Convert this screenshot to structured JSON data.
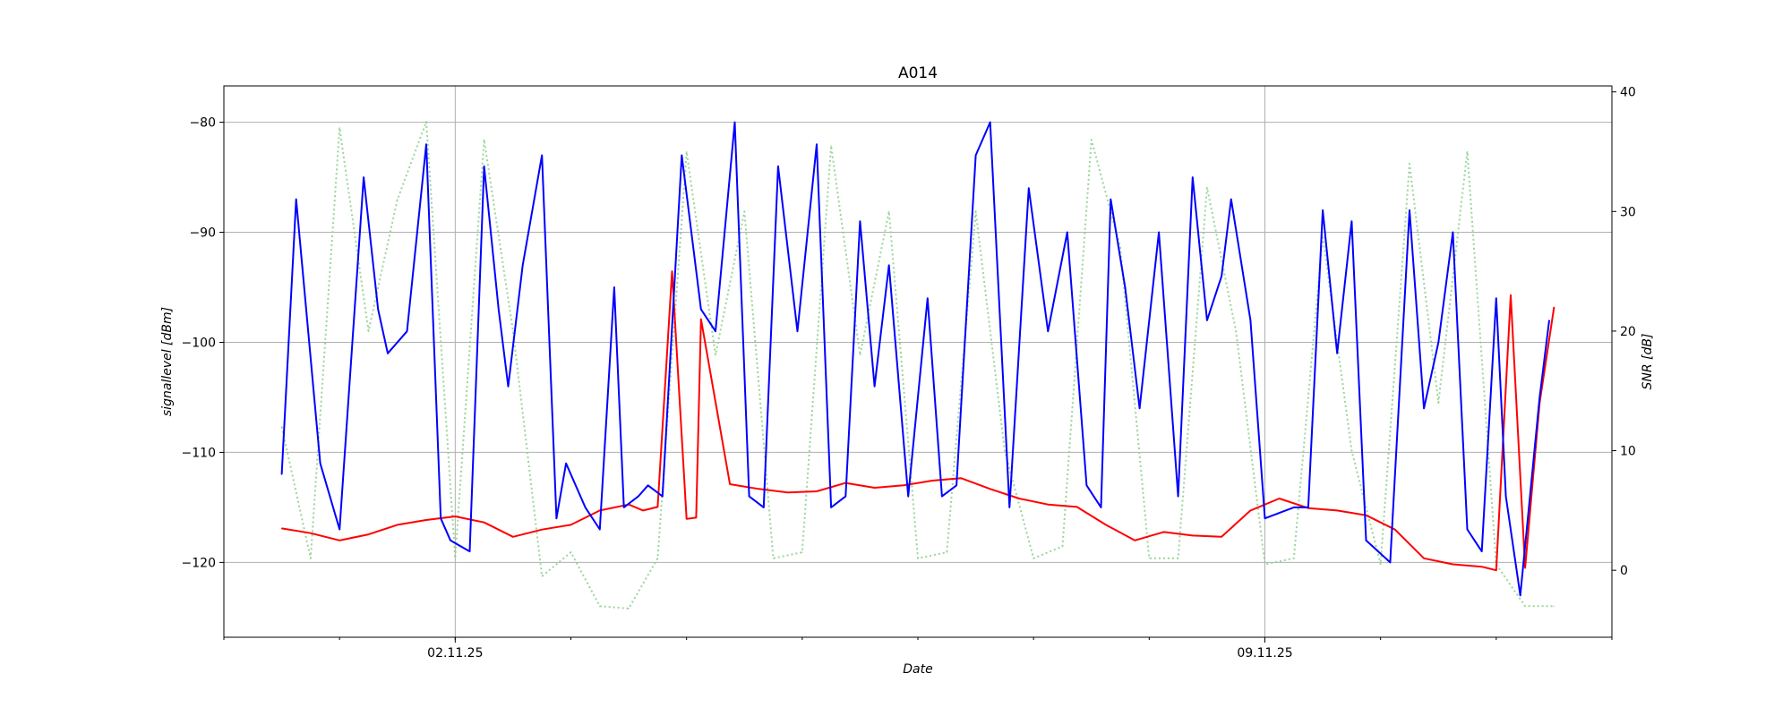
{
  "chart_data": {
    "type": "line",
    "title": "A014",
    "xlabel": "Date",
    "ylabel": "signallevel [dBm]",
    "y2label": "SNR [dB]",
    "x_range": [
      "2025-10-31T00:00",
      "2025-11-12T00:00"
    ],
    "ylim": [
      -126.8,
      -76.7
    ],
    "y2lim": [
      -5.6,
      40.5
    ],
    "grid": true,
    "x_ticks": [
      {
        "date": "2025-11-02",
        "label": "02.11.25"
      },
      {
        "date": "2025-11-09",
        "label": "09.11.25"
      }
    ],
    "y_ticks": [
      -80,
      -90,
      -100,
      -110,
      -120
    ],
    "y2_ticks": [
      40,
      30,
      20,
      10,
      0
    ],
    "colors": {
      "signal": "#0000ff",
      "snr": "#ff0000",
      "dotted": "#90d090"
    },
    "series": [
      {
        "key": "signal",
        "axis": "left",
        "style": "solid",
        "x": [
          "2025-10-31T12:00",
          "2025-10-31T15:00",
          "2025-10-31T20:00",
          "2025-11-01T00:00",
          "2025-11-01T05:00",
          "2025-11-01T08:00",
          "2025-11-01T10:00",
          "2025-11-01T14:00",
          "2025-11-01T18:00",
          "2025-11-01T21:00",
          "2025-11-01T23:00",
          "2025-11-02T03:00",
          "2025-11-02T06:00",
          "2025-11-02T09:00",
          "2025-11-02T11:00",
          "2025-11-02T14:00",
          "2025-11-02T18:00",
          "2025-11-02T21:00",
          "2025-11-02T23:00",
          "2025-11-03T03:00",
          "2025-11-03T06:00",
          "2025-11-03T09:00",
          "2025-11-03T11:00",
          "2025-11-03T14:00",
          "2025-11-03T16:00",
          "2025-11-03T19:00",
          "2025-11-03T23:00",
          "2025-11-04T03:00",
          "2025-11-04T06:00",
          "2025-11-04T10:00",
          "2025-11-04T13:00",
          "2025-11-04T16:00",
          "2025-11-04T19:00",
          "2025-11-04T23:00",
          "2025-11-05T03:00",
          "2025-11-05T06:00",
          "2025-11-05T09:00",
          "2025-11-05T12:00",
          "2025-11-05T15:00",
          "2025-11-05T18:00",
          "2025-11-05T22:00",
          "2025-11-06T02:00",
          "2025-11-06T05:00",
          "2025-11-06T08:00",
          "2025-11-06T12:00",
          "2025-11-06T15:00",
          "2025-11-06T19:00",
          "2025-11-06T23:00",
          "2025-11-07T03:00",
          "2025-11-07T07:00",
          "2025-11-07T11:00",
          "2025-11-07T14:00",
          "2025-11-07T16:00",
          "2025-11-07T19:00",
          "2025-11-07T22:00",
          "2025-11-08T02:00",
          "2025-11-08T06:00",
          "2025-11-08T09:00",
          "2025-11-08T12:00",
          "2025-11-08T15:00",
          "2025-11-08T17:00",
          "2025-11-08T21:00",
          "2025-11-09T00:00",
          "2025-11-09T06:00",
          "2025-11-09T09:00",
          "2025-11-09T12:00",
          "2025-11-09T15:00",
          "2025-11-09T18:00",
          "2025-11-09T21:00",
          "2025-11-10T02:00",
          "2025-11-10T06:00",
          "2025-11-10T09:00",
          "2025-11-10T12:00",
          "2025-11-10T15:00",
          "2025-11-10T18:00",
          "2025-11-10T21:00",
          "2025-11-11T00:00",
          "2025-11-11T02:00",
          "2025-11-11T05:00",
          "2025-11-11T09:00",
          "2025-11-11T11:00"
        ],
        "y": [
          -112,
          -87,
          -111,
          -117,
          -85,
          -97,
          -101,
          -99,
          -82,
          -116,
          -118,
          -119,
          -84,
          -97,
          -104,
          -93,
          -83,
          -116,
          -111,
          -115,
          -117,
          -95,
          -115,
          -114,
          -113,
          -114,
          -83,
          -97,
          -99,
          -80,
          -114,
          -115,
          -84,
          -99,
          -82,
          -115,
          -114,
          -89,
          -104,
          -93,
          -114,
          -96,
          -114,
          -113,
          -83,
          -80,
          -115,
          -86,
          -99,
          -90,
          -113,
          -115,
          -87,
          -95,
          -106,
          -90,
          -114,
          -85,
          -98,
          -94,
          -87,
          -98,
          -116,
          -115,
          -115,
          -88,
          -101,
          -89,
          -118,
          -120,
          -88,
          -106,
          -100,
          -90,
          -117,
          -119,
          -96,
          -114,
          -123,
          -105,
          -98
        ]
      },
      {
        "key": "snr",
        "axis": "right",
        "style": "solid",
        "x": [
          "2025-10-31T12:00",
          "2025-10-31T18:00",
          "2025-11-01T00:00",
          "2025-11-01T06:00",
          "2025-11-01T12:00",
          "2025-11-01T18:00",
          "2025-11-02T00:00",
          "2025-11-02T06:00",
          "2025-11-02T12:00",
          "2025-11-02T18:00",
          "2025-11-03T00:00",
          "2025-11-03T06:00",
          "2025-11-03T12:00",
          "2025-11-03T15:00",
          "2025-11-03T18:00",
          "2025-11-03T21:00",
          "2025-11-04T00:00",
          "2025-11-04T02:00",
          "2025-11-04T03:00",
          "2025-11-04T09:00",
          "2025-11-04T15:00",
          "2025-11-04T21:00",
          "2025-11-05T03:00",
          "2025-11-05T09:00",
          "2025-11-05T15:00",
          "2025-11-05T21:00",
          "2025-11-06T03:00",
          "2025-11-06T09:00",
          "2025-11-06T15:00",
          "2025-11-06T21:00",
          "2025-11-07T03:00",
          "2025-11-07T09:00",
          "2025-11-07T15:00",
          "2025-11-07T21:00",
          "2025-11-08T03:00",
          "2025-11-08T09:00",
          "2025-11-08T15:00",
          "2025-11-08T21:00",
          "2025-11-09T03:00",
          "2025-11-09T09:00",
          "2025-11-09T15:00",
          "2025-11-09T21:00",
          "2025-11-10T03:00",
          "2025-11-10T09:00",
          "2025-11-10T15:00",
          "2025-11-10T21:00",
          "2025-11-11T00:00",
          "2025-11-11T03:00",
          "2025-11-11T06:00",
          "2025-11-11T09:00",
          "2025-11-11T12:00"
        ],
        "y": [
          3.5,
          3.1,
          2.5,
          3.0,
          3.8,
          4.2,
          4.5,
          4.0,
          2.8,
          3.4,
          3.8,
          5.0,
          5.5,
          5.0,
          5.3,
          25.0,
          4.3,
          4.4,
          21.0,
          7.2,
          6.8,
          6.5,
          6.6,
          7.3,
          6.9,
          7.1,
          7.5,
          7.7,
          6.8,
          6.0,
          5.5,
          5.3,
          3.8,
          2.5,
          3.2,
          2.9,
          2.8,
          5.0,
          6.0,
          5.2,
          5.0,
          4.6,
          3.4,
          1.0,
          0.5,
          0.3,
          0.0,
          23.0,
          0.2,
          14.0,
          22.0
        ]
      },
      {
        "key": "dotted",
        "axis": "right",
        "style": "dotted",
        "x": [
          "2025-10-31T12:00",
          "2025-10-31T18:00",
          "2025-11-01T00:00",
          "2025-11-01T06:00",
          "2025-11-01T12:00",
          "2025-11-01T18:00",
          "2025-11-02T00:00",
          "2025-11-02T06:00",
          "2025-11-02T12:00",
          "2025-11-02T18:00",
          "2025-11-03T00:00",
          "2025-11-03T06:00",
          "2025-11-03T12:00",
          "2025-11-03T18:00",
          "2025-11-04T00:00",
          "2025-11-04T06:00",
          "2025-11-04T12:00",
          "2025-11-04T18:00",
          "2025-11-05T00:00",
          "2025-11-05T06:00",
          "2025-11-05T12:00",
          "2025-11-05T18:00",
          "2025-11-06T00:00",
          "2025-11-06T06:00",
          "2025-11-06T12:00",
          "2025-11-06T18:00",
          "2025-11-07T00:00",
          "2025-11-07T06:00",
          "2025-11-07T12:00",
          "2025-11-07T18:00",
          "2025-11-08T00:00",
          "2025-11-08T06:00",
          "2025-11-08T12:00",
          "2025-11-08T18:00",
          "2025-11-09T00:00",
          "2025-11-09T06:00",
          "2025-11-09T12:00",
          "2025-11-09T18:00",
          "2025-11-10T00:00",
          "2025-11-10T06:00",
          "2025-11-10T12:00",
          "2025-11-10T18:00",
          "2025-11-11T00:00",
          "2025-11-11T06:00",
          "2025-11-11T12:00"
        ],
        "y": [
          12.0,
          1.0,
          37.0,
          20.0,
          31.0,
          37.5,
          1.0,
          36.0,
          20.0,
          -0.5,
          1.5,
          -3.0,
          -3.2,
          1.0,
          35.0,
          18.0,
          30.0,
          1.0,
          1.5,
          35.5,
          18.0,
          30.0,
          1.0,
          1.5,
          30.0,
          10.0,
          1.0,
          2.0,
          36.0,
          27.0,
          1.0,
          1.0,
          32.0,
          20.0,
          0.5,
          1.0,
          28.0,
          10.0,
          0.5,
          34.0,
          14.0,
          35.0,
          0.5,
          -3.0,
          -3.0
        ]
      }
    ]
  }
}
